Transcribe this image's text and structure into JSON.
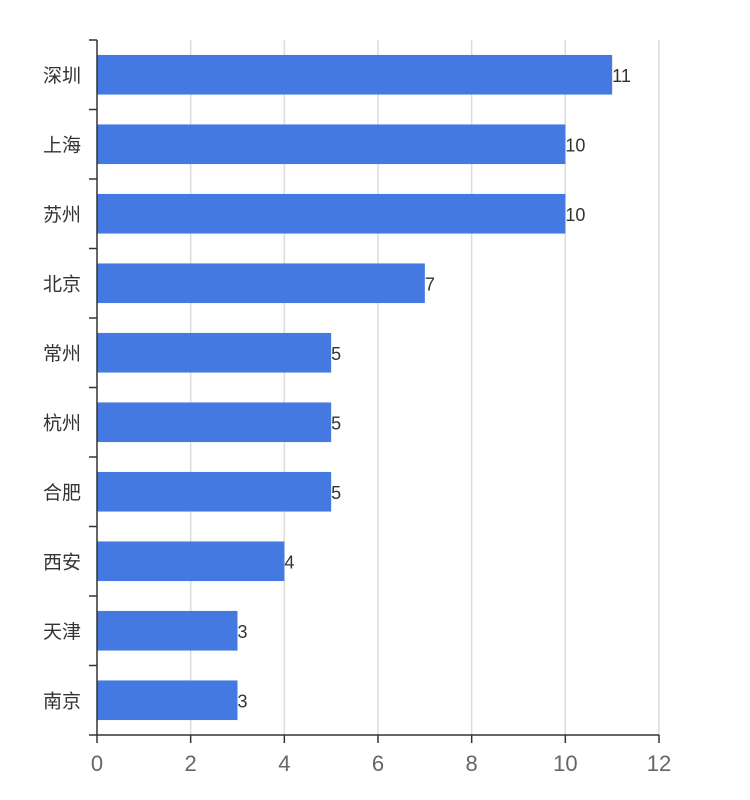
{
  "chart_data": {
    "type": "bar",
    "orientation": "horizontal",
    "categories": [
      "深圳",
      "上海",
      "苏州",
      "北京",
      "常州",
      "杭州",
      "合肥",
      "西安",
      "天津",
      "南京"
    ],
    "values": [
      11,
      10,
      10,
      7,
      5,
      5,
      5,
      4,
      3,
      3
    ],
    "xlim": [
      0,
      12
    ],
    "x_ticks": [
      "0",
      "2",
      "4",
      "6",
      "8",
      "10",
      "12"
    ],
    "title": "",
    "xlabel": "",
    "ylabel": "",
    "grid": "vertical",
    "legend": "none",
    "bar_color": "#4479e1",
    "data_labels": true
  }
}
